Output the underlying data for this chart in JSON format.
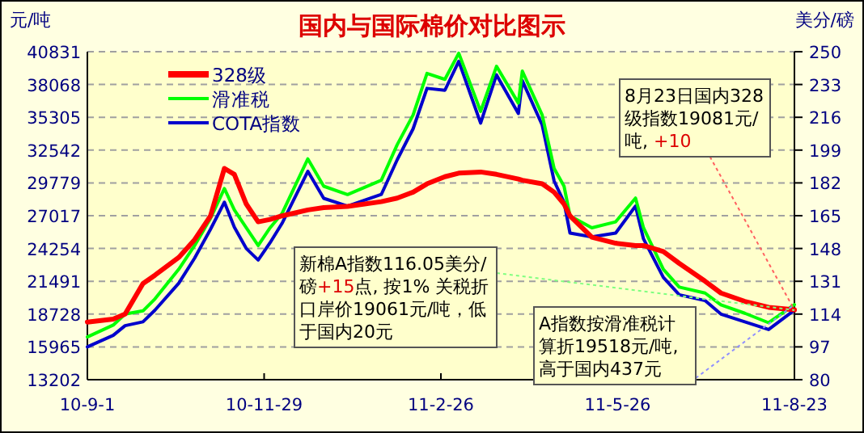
{
  "chart_data": {
    "type": "line",
    "title": "国内与国际棉价对比图示",
    "ylabel": "元/吨",
    "y2label": "美分/磅",
    "ylim": [
      13202,
      40831
    ],
    "yticks": [
      13202,
      15965,
      18728,
      21491,
      24254,
      27017,
      29779,
      32542,
      35305,
      38068,
      40831
    ],
    "y2lim": [
      80,
      250
    ],
    "y2ticks": [
      80,
      97,
      114,
      131,
      148,
      165,
      182,
      199,
      216,
      233,
      250
    ],
    "xlim": [
      "2010-09-01",
      "2011-08-23"
    ],
    "xticks": [
      {
        "value": "2010-09-01",
        "label": "10-9-1"
      },
      {
        "value": "2010-11-29",
        "label": "10-11-29"
      },
      {
        "value": "2011-02-26",
        "label": "11-2-26"
      },
      {
        "value": "2011-05-26",
        "label": "11-5-26"
      },
      {
        "value": "2011-08-23",
        "label": "11-8-23"
      }
    ],
    "x": [
      "2010-09-01",
      "2010-09-14",
      "2010-09-20",
      "2010-09-29",
      "2010-10-05",
      "2010-10-17",
      "2010-10-25",
      "2010-11-02",
      "2010-11-09",
      "2010-11-14",
      "2010-11-20",
      "2010-11-26",
      "2010-12-02",
      "2010-12-08",
      "2010-12-21",
      "2010-12-29",
      "2011-01-10",
      "2011-01-27",
      "2011-02-04",
      "2011-02-12",
      "2011-02-19",
      "2011-02-28",
      "2011-03-07",
      "2011-03-18",
      "2011-03-26",
      "2011-04-06",
      "2011-04-08",
      "2011-04-18",
      "2011-04-24",
      "2011-04-29",
      "2011-05-02",
      "2011-05-13",
      "2011-05-25",
      "2011-06-04",
      "2011-06-08",
      "2011-06-18",
      "2011-06-26",
      "2011-07-09",
      "2011-07-17",
      "2011-07-29",
      "2011-08-10",
      "2011-08-23"
    ],
    "series": [
      {
        "name": "328级",
        "color": "#ff0000",
        "values": [
          18050,
          18300,
          18728,
          21300,
          22000,
          23500,
          25000,
          27000,
          31000,
          30500,
          28000,
          26500,
          26700,
          27000,
          27500,
          27700,
          27800,
          28200,
          28500,
          29000,
          29700,
          30300,
          30600,
          30700,
          30500,
          30100,
          30000,
          29700,
          29000,
          28000,
          27000,
          25200,
          24700,
          24500,
          24500,
          24000,
          23000,
          21500,
          20500,
          19800,
          19300,
          19081
        ]
      },
      {
        "name": "滑准税",
        "color": "#00ff00",
        "values": [
          16800,
          17800,
          18728,
          19000,
          20000,
          22500,
          24500,
          26800,
          29300,
          27500,
          26000,
          24500,
          26000,
          27200,
          31800,
          29500,
          28800,
          30000,
          33000,
          35500,
          39000,
          38500,
          40700,
          35800,
          39600,
          36500,
          39200,
          35500,
          31000,
          29500,
          27000,
          26000,
          26500,
          28500,
          26000,
          22500,
          21000,
          20500,
          19500,
          18800,
          18000,
          19518
        ]
      },
      {
        "name": "COTA指数",
        "color": "#0000cc",
        "axis": "y2",
        "values": [
          97,
          103,
          108,
          110,
          116,
          130,
          143,
          158,
          172,
          159,
          148,
          142,
          151,
          161,
          188,
          174,
          170,
          176,
          194,
          210,
          231,
          230,
          245,
          213,
          238,
          218,
          235,
          212,
          183,
          172,
          156,
          154,
          156,
          170,
          153,
          133,
          124,
          121,
          114,
          110,
          106,
          116.05
        ]
      }
    ],
    "grid": "y",
    "legend": "top left",
    "line_style": "solid",
    "marker": "none",
    "annotations": [
      {
        "text": "8月23日国内328级指数19081元/吨, +10",
        "x": "2011-08-23",
        "y": 19081
      },
      {
        "text": "新棉A指数116.05美分/磅+15点, 按1% 关税折口岸价19061元/吨，低于国内20元",
        "x": "2011-08-23",
        "y": 19061
      },
      {
        "text": "A指数按滑准税计算折19518元/吨, 高于国内437元",
        "x": "2011-08-23",
        "y": 19518
      }
    ]
  }
}
